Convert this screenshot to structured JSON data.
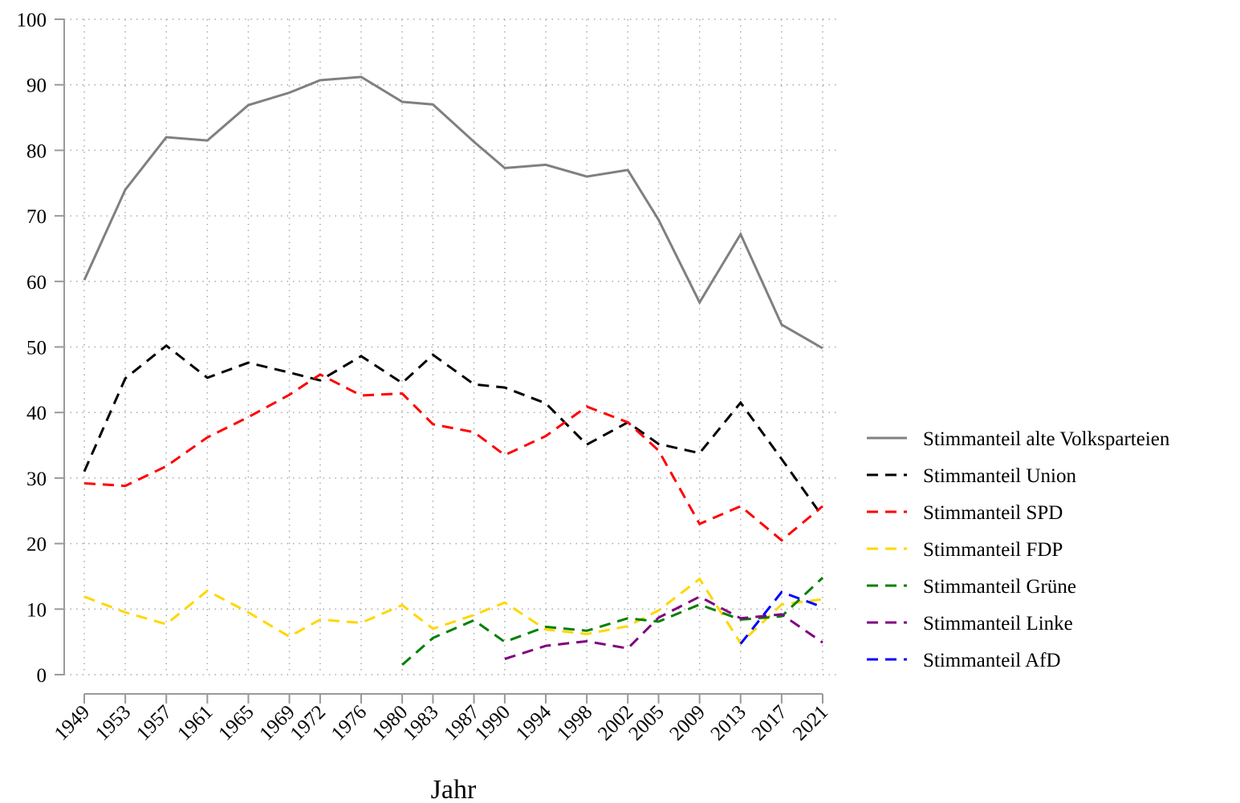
{
  "chart_data": {
    "type": "line",
    "x_label": "Jahr",
    "x": [
      1949,
      1953,
      1957,
      1961,
      1965,
      1969,
      1972,
      1976,
      1980,
      1983,
      1987,
      1990,
      1994,
      1998,
      2002,
      2005,
      2009,
      2013,
      2017,
      2021
    ],
    "xlim": [
      1949,
      2021
    ],
    "xticks": [
      1949,
      1953,
      1957,
      1961,
      1965,
      1969,
      1972,
      1976,
      1980,
      1983,
      1987,
      1990,
      1994,
      1998,
      2002,
      2005,
      2009,
      2013,
      2017,
      2021
    ],
    "ylim": [
      0,
      100
    ],
    "yticks": [
      0,
      10,
      20,
      30,
      40,
      50,
      60,
      70,
      80,
      90,
      100
    ],
    "grid": true,
    "legend": "right",
    "series": [
      {
        "name": "Stimmanteil alte Volksparteien",
        "color": "#808080",
        "dashed": false,
        "values": [
          60.2,
          74.0,
          82.0,
          81.5,
          86.9,
          88.8,
          90.7,
          91.2,
          87.4,
          87.0,
          81.3,
          77.3,
          77.8,
          76.0,
          77.0,
          69.4,
          56.8,
          67.2,
          53.4,
          49.8
        ]
      },
      {
        "name": "Stimmanteil Union",
        "color": "#000000",
        "dashed": true,
        "values": [
          31.0,
          45.2,
          50.2,
          45.3,
          47.6,
          46.1,
          44.9,
          48.6,
          44.5,
          48.8,
          44.3,
          43.8,
          41.4,
          35.1,
          38.5,
          35.2,
          33.8,
          41.5,
          32.9,
          24.1
        ]
      },
      {
        "name": "Stimmanteil SPD",
        "color": "#ff0000",
        "dashed": true,
        "values": [
          29.2,
          28.8,
          31.8,
          36.2,
          39.3,
          42.7,
          45.8,
          42.6,
          42.9,
          38.2,
          37.0,
          33.5,
          36.4,
          40.9,
          38.5,
          34.2,
          23.0,
          25.7,
          20.5,
          25.7
        ]
      },
      {
        "name": "Stimmanteil FDP",
        "color": "#ffd700",
        "dashed": true,
        "values": [
          11.9,
          9.5,
          7.7,
          12.8,
          9.5,
          5.8,
          8.4,
          7.9,
          10.6,
          7.0,
          9.1,
          11.0,
          6.9,
          6.2,
          7.4,
          9.8,
          14.6,
          4.8,
          10.7,
          11.5
        ]
      },
      {
        "name": "Stimmanteil Grüne",
        "color": "#008000",
        "dashed": true,
        "values": [
          null,
          null,
          null,
          null,
          null,
          null,
          null,
          null,
          1.5,
          5.6,
          8.3,
          5.0,
          7.3,
          6.7,
          8.6,
          8.1,
          10.7,
          8.4,
          8.9,
          14.8
        ]
      },
      {
        "name": "Stimmanteil Linke",
        "color": "#800080",
        "dashed": true,
        "values": [
          null,
          null,
          null,
          null,
          null,
          null,
          null,
          null,
          null,
          null,
          null,
          2.4,
          4.4,
          5.1,
          4.0,
          8.7,
          11.9,
          8.6,
          9.2,
          4.9
        ]
      },
      {
        "name": "Stimmanteil AfD",
        "color": "#0000ff",
        "dashed": true,
        "values": [
          null,
          null,
          null,
          null,
          null,
          null,
          null,
          null,
          null,
          null,
          null,
          null,
          null,
          null,
          null,
          null,
          null,
          4.7,
          12.6,
          10.3
        ]
      }
    ]
  }
}
